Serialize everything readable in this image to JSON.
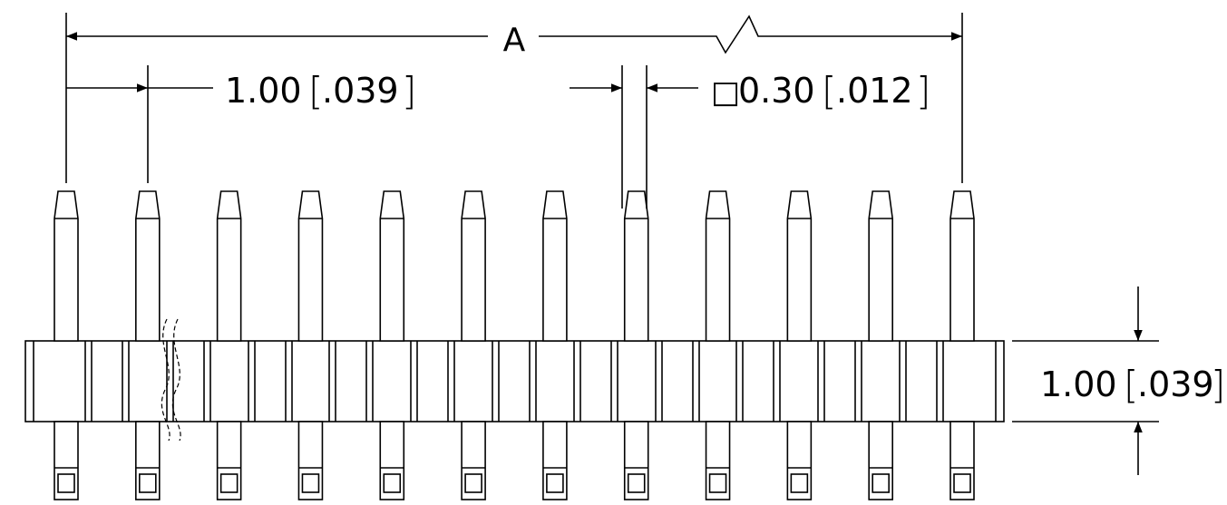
{
  "dimensions": {
    "overall": {
      "label": "A"
    },
    "pitch": {
      "value": "1.00",
      "alt_value": ".039"
    },
    "pin_size": {
      "symbol": "□",
      "value": "0.30",
      "alt_value": ".012"
    },
    "body_height": {
      "value": "1.00",
      "alt_value": ".039"
    }
  },
  "pin_count": 12,
  "colors": {
    "line": "#000000",
    "background": "#ffffff"
  }
}
